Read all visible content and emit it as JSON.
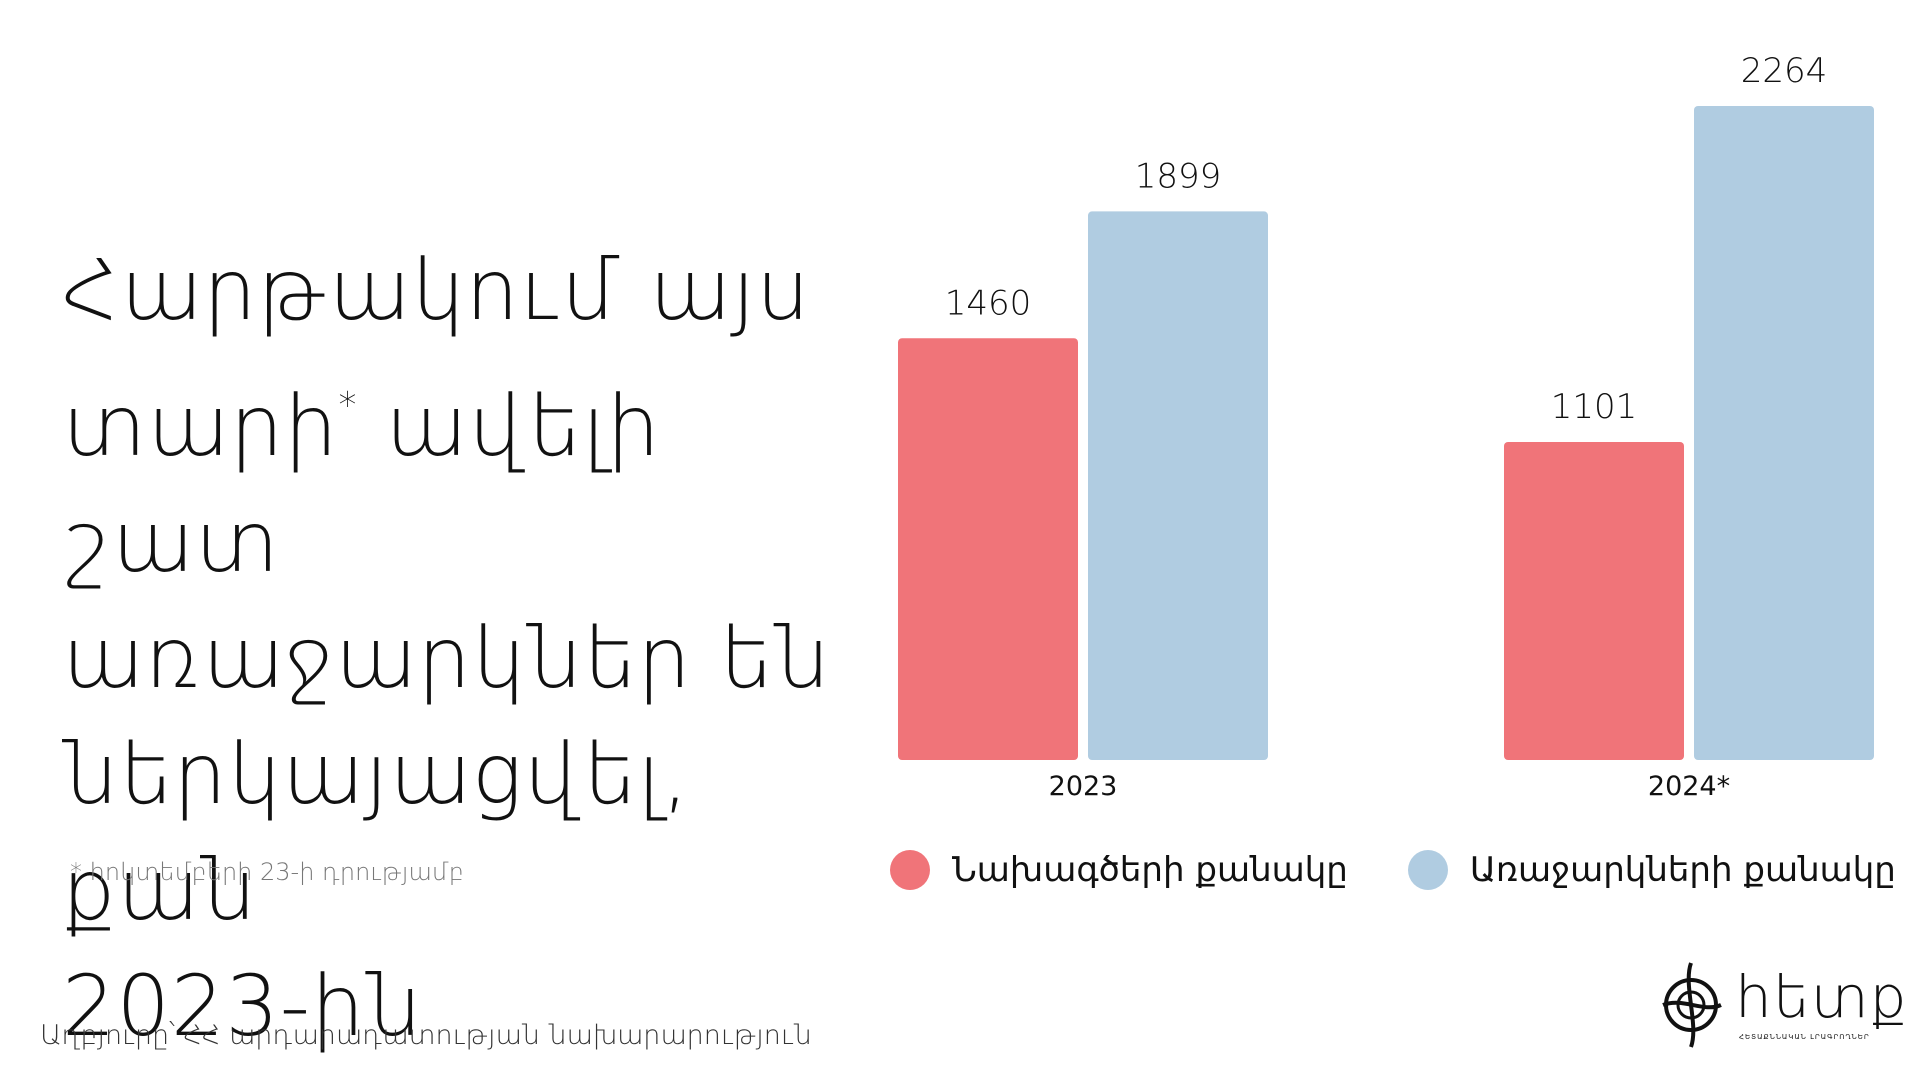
{
  "headline": {
    "line1": "Հարթակում այս",
    "line2a": "տարի",
    "line2_star": "*",
    "line2b": " ավելի շատ",
    "line3": "առաջարկներ են",
    "line4": "ներկայացվել, քան",
    "line5": "2023-ին"
  },
  "footnote": "* հոկտեմբերի 23-ի դրությամբ",
  "source": "Աղբյուրը՝ ՀՀ արդարադատության նախարարություն",
  "logo": {
    "text": "hետք",
    "subtitle": "ՀԵՏԱՔՆՆԱԿԱՆ ԼՐԱԳՐՈՂՆԵՐ"
  },
  "colors": {
    "projects": "#f07479",
    "proposals": "#b0cce1",
    "text": "#111111"
  },
  "chart_data": {
    "type": "bar",
    "categories": [
      "2023",
      "2024*"
    ],
    "series": [
      {
        "name": "Նախագծերի քանակը",
        "values": [
          1460,
          1101
        ]
      },
      {
        "name": "Առաջարկների քանակը",
        "values": [
          1899,
          2264
        ]
      }
    ],
    "ylim": [
      0,
      2264
    ],
    "grid": false,
    "legend_position": "bottom",
    "data_labels": true
  }
}
